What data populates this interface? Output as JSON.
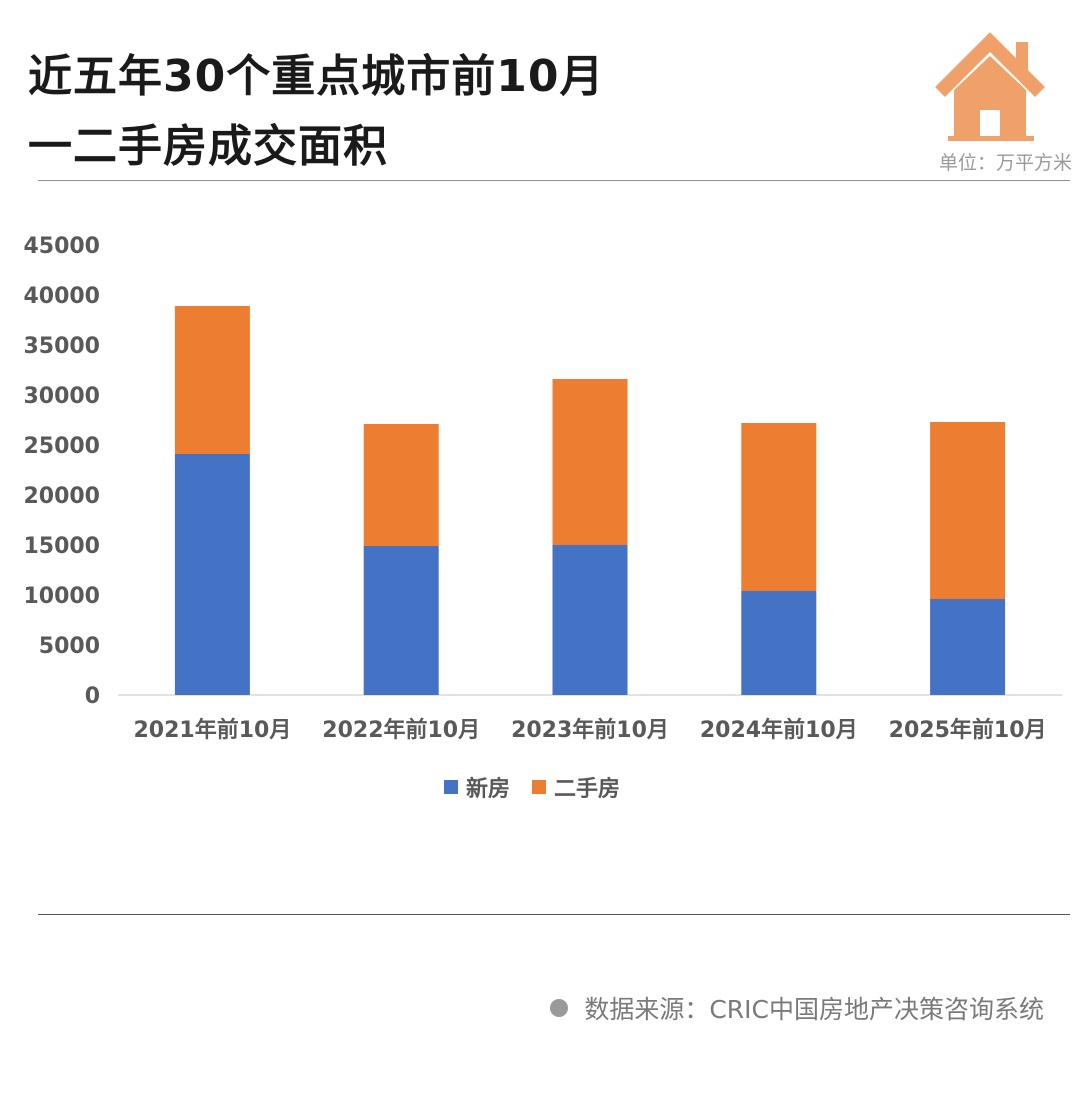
{
  "title_lines": [
    "近五年30个重点城市前10月",
    "一二手房成交面积"
  ],
  "unit": "单位：万平方米",
  "source": "数据来源：CRIC中国房地产决策咨询系统",
  "logo": {
    "icon": "house-icon",
    "color": "#f0a16a"
  },
  "colors": {
    "new": "#4472c4",
    "second": "#ed7d31",
    "axis": "#d9d9d9",
    "tick_text": "#595959"
  },
  "chart_data": {
    "type": "bar",
    "stacked": true,
    "categories": [
      "2021年前10月",
      "2022年前10月",
      "2023年前10月",
      "2024年前10月",
      "2025年前10月"
    ],
    "series": [
      {
        "name": "新房",
        "values": [
          24100,
          14900,
          15000,
          10400,
          9600
        ]
      },
      {
        "name": "二手房",
        "values": [
          14800,
          12200,
          16600,
          16800,
          17700
        ]
      }
    ],
    "yticks": [
      0,
      5000,
      10000,
      15000,
      20000,
      25000,
      30000,
      35000,
      40000,
      45000
    ],
    "ylim": [
      0,
      45000
    ],
    "grid": false,
    "legend_position": "bottom"
  }
}
